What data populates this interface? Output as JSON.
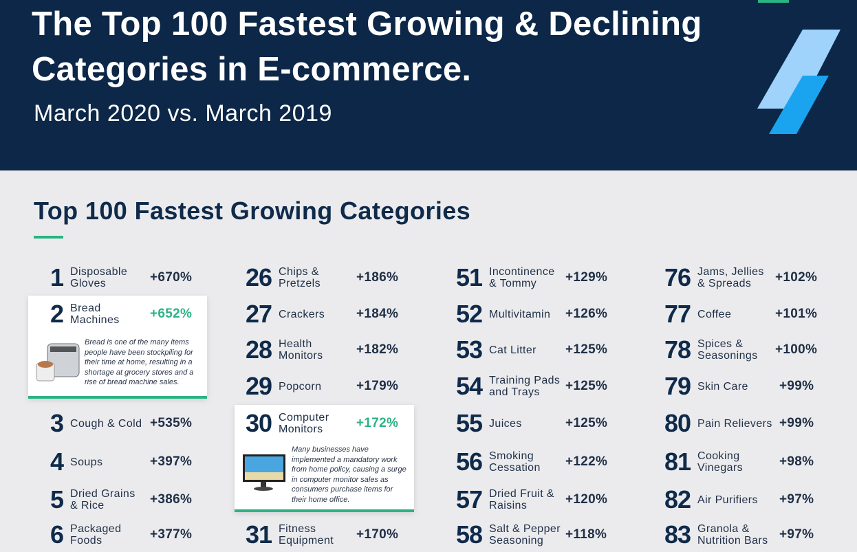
{
  "header": {
    "title_line1": "The Top 100 Fastest Growing & Declining",
    "title_line2": "Categories in E-commerce.",
    "subtitle": "March 2020 vs. March 2019"
  },
  "section": {
    "title": "Top 100 Fastest Growing Categories"
  },
  "colors": {
    "navy": "#0c2747",
    "accent_green": "#2bb383",
    "light_blue": "#9fd3fb",
    "bright_blue": "#1aa3ef"
  },
  "columns": [
    [
      {
        "rank": "1",
        "name": "Disposable Gloves",
        "change": "+670%"
      },
      {
        "rank": "2",
        "name": "Bread Machines",
        "change": "+652%",
        "highlight": true,
        "note": "Bread is one of the many items people have been stockpiling for their time at home, resulting in a shortage at grocery stores and a rise of bread machine sales.",
        "image": "bread-machine"
      },
      {
        "rank": "3",
        "name": "Cough & Cold",
        "change": "+535%"
      },
      {
        "rank": "4",
        "name": "Soups",
        "change": "+397%"
      },
      {
        "rank": "5",
        "name": "Dried Grains & Rice",
        "change": "+386%"
      },
      {
        "rank": "6",
        "name": "Packaged Foods",
        "change": "+377%"
      }
    ],
    [
      {
        "rank": "26",
        "name": "Chips & Pretzels",
        "change": "+186%"
      },
      {
        "rank": "27",
        "name": "Crackers",
        "change": "+184%"
      },
      {
        "rank": "28",
        "name": "Health Monitors",
        "change": "+182%"
      },
      {
        "rank": "29",
        "name": "Popcorn",
        "change": "+179%"
      },
      {
        "rank": "30",
        "name": "Computer Monitors",
        "change": "+172%",
        "highlight": true,
        "note": "Many businesses have implemented a mandatory work from home policy, causing a surge in computer monitor sales as consumers purchase items for their home office.",
        "image": "computer-monitor"
      },
      {
        "rank": "31",
        "name": "Fitness Equipment",
        "change": "+170%"
      }
    ],
    [
      {
        "rank": "51",
        "name": "Incontinence & Tommy",
        "change": "+129%"
      },
      {
        "rank": "52",
        "name": "Multivitamin",
        "change": "+126%"
      },
      {
        "rank": "53",
        "name": "Cat Litter",
        "change": "+125%"
      },
      {
        "rank": "54",
        "name": "Training Pads and Trays",
        "change": "+125%"
      },
      {
        "rank": "55",
        "name": "Juices",
        "change": "+125%"
      },
      {
        "rank": "56",
        "name": "Smoking Cessation",
        "change": "+122%"
      },
      {
        "rank": "57",
        "name": "Dried Fruit & Raisins",
        "change": "+120%"
      },
      {
        "rank": "58",
        "name": "Salt & Pepper Seasoning",
        "change": "+118%"
      }
    ],
    [
      {
        "rank": "76",
        "name": "Jams, Jellies & Spreads",
        "change": "+102%"
      },
      {
        "rank": "77",
        "name": "Coffee",
        "change": "+101%"
      },
      {
        "rank": "78",
        "name": "Spices & Seasonings",
        "change": "+100%"
      },
      {
        "rank": "79",
        "name": "Skin Care",
        "change": "+99%"
      },
      {
        "rank": "80",
        "name": "Pain Relievers",
        "change": "+99%"
      },
      {
        "rank": "81",
        "name": "Cooking Vinegars",
        "change": "+98%"
      },
      {
        "rank": "82",
        "name": "Air Purifiers",
        "change": "+97%"
      },
      {
        "rank": "83",
        "name": "Granola & Nutrition Bars",
        "change": "+97%"
      }
    ]
  ]
}
